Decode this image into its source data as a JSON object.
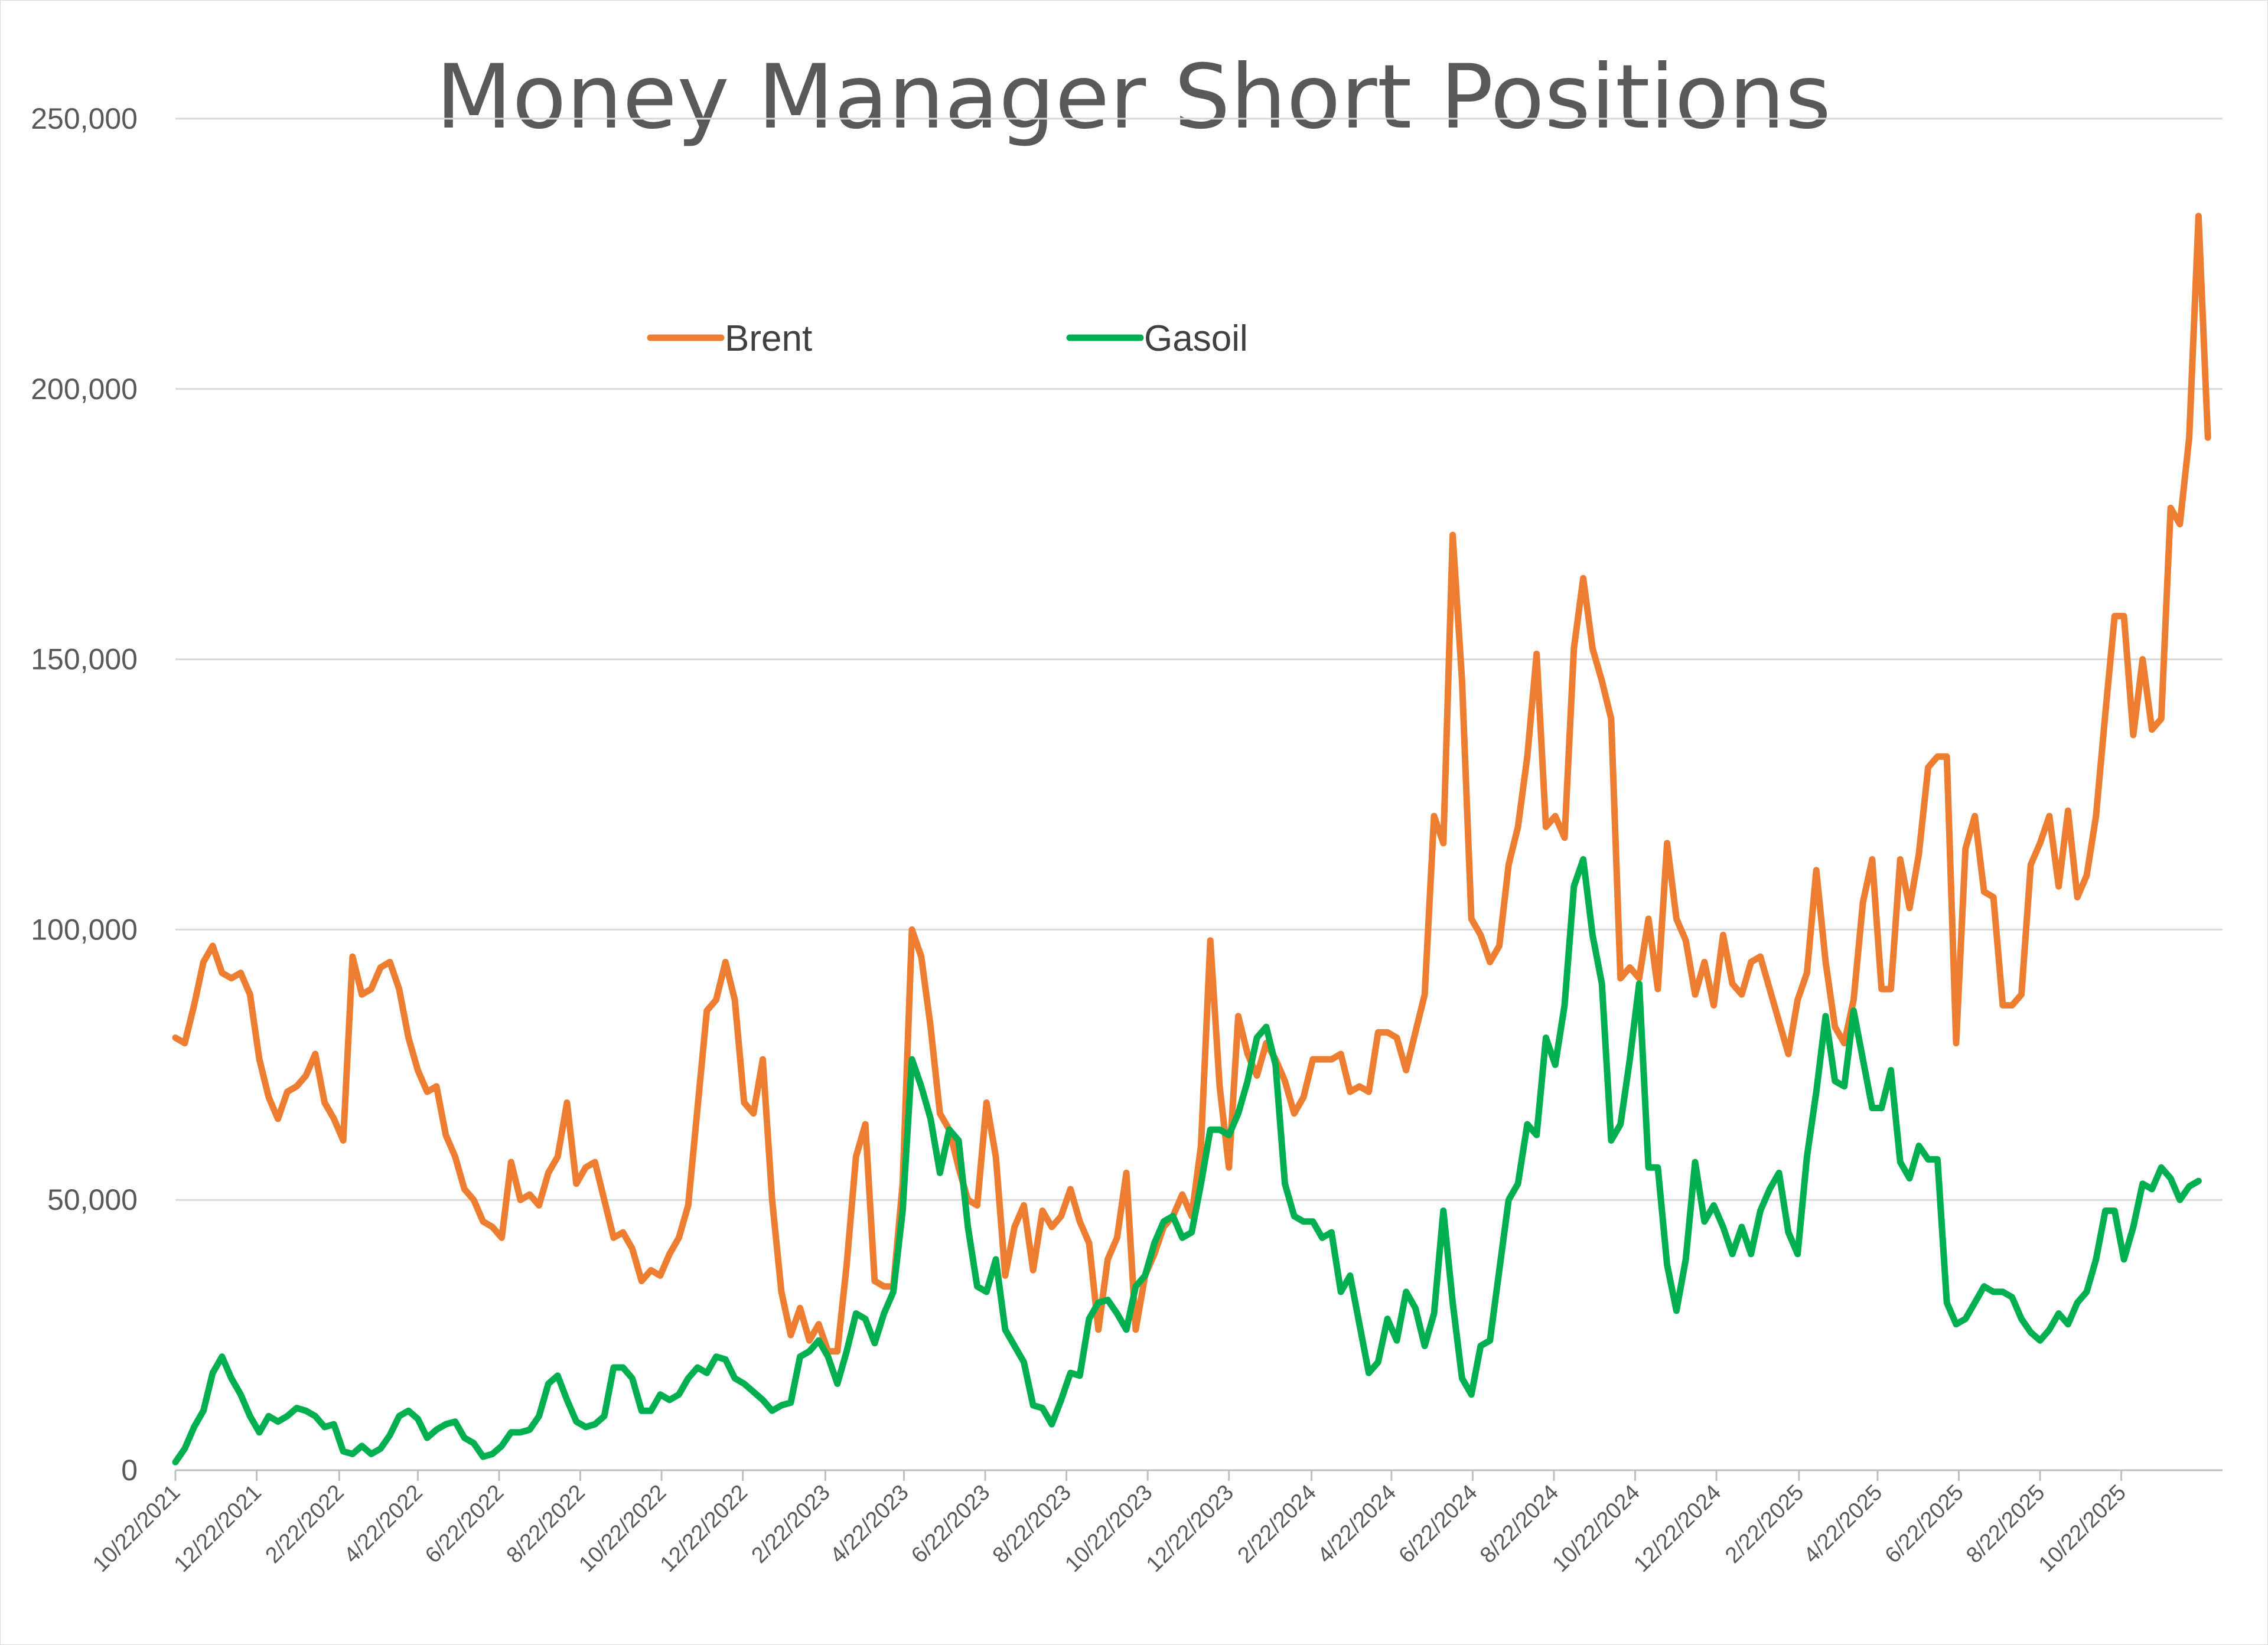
{
  "chart_data": {
    "type": "line",
    "title": "Money Manager Short Positions",
    "xlabel": "",
    "ylabel": "",
    "ylim": [
      0,
      250000
    ],
    "y_ticks": [
      0,
      50000,
      100000,
      150000,
      200000,
      250000
    ],
    "y_tick_labels": [
      "0",
      "50,000",
      "100,000",
      "150,000",
      "200,000",
      "250,000"
    ],
    "x_tick_labels": [
      "10/22/2021",
      "12/22/2021",
      "2/22/2022",
      "4/22/2022",
      "6/22/2022",
      "8/22/2022",
      "10/22/2022",
      "12/22/2022",
      "2/22/2023",
      "4/22/2023",
      "6/22/2023",
      "8/22/2023",
      "10/22/2023",
      "12/22/2023",
      "2/22/2024",
      "4/22/2024",
      "6/22/2024",
      "8/22/2024",
      "10/22/2024",
      "12/22/2024",
      "2/22/2025",
      "4/22/2025",
      "6/22/2025",
      "8/22/2025",
      "10/22/2025"
    ],
    "x_range": [
      "10/22/2021",
      "1/6/2026"
    ],
    "frequency": "weekly",
    "grid": "horizontal",
    "legend_position": "top-center",
    "series": [
      {
        "name": "Brent",
        "color": "#ED7D31",
        "values": [
          80000,
          79000,
          86000,
          94000,
          97000,
          92000,
          91000,
          92000,
          88000,
          76000,
          69000,
          65000,
          70000,
          71000,
          73000,
          77000,
          68000,
          65000,
          61000,
          95000,
          88000,
          89000,
          93000,
          94000,
          89000,
          80000,
          74000,
          70000,
          71000,
          62000,
          58000,
          52000,
          50000,
          46000,
          45000,
          43000,
          57000,
          50000,
          51000,
          49000,
          55000,
          58000,
          68000,
          53000,
          56000,
          57000,
          50000,
          43000,
          44000,
          41000,
          35000,
          37000,
          36000,
          40000,
          43000,
          49000,
          67000,
          85000,
          87000,
          94000,
          87000,
          68000,
          66000,
          76000,
          50000,
          33000,
          25000,
          30000,
          24000,
          27000,
          22000,
          22000,
          38000,
          58000,
          64000,
          35000,
          34000,
          34000,
          53000,
          100000,
          95000,
          82000,
          66000,
          63000,
          56000,
          50000,
          49000,
          68000,
          58000,
          36000,
          45000,
          49000,
          37000,
          48000,
          45000,
          47000,
          52000,
          46000,
          42000,
          26000,
          39000,
          43000,
          55000,
          26000,
          36000,
          40000,
          45000,
          47000,
          51000,
          47000,
          60000,
          98000,
          71000,
          56000,
          84000,
          77000,
          73000,
          79000,
          76000,
          72000,
          66000,
          69000,
          76000,
          76000,
          76000,
          77000,
          70000,
          71000,
          70000,
          81000,
          81000,
          80000,
          74000,
          81000,
          88000,
          121000,
          116000,
          173000,
          146000,
          102000,
          99000,
          94000,
          97000,
          112000,
          119000,
          132000,
          151000,
          119000,
          121000,
          117000,
          152000,
          165000,
          152000,
          146000,
          139000,
          91000,
          93000,
          91000,
          102000,
          89000,
          116000,
          102000,
          98000,
          88000,
          94000,
          86000,
          99000,
          90000,
          88000,
          94000,
          95000,
          89000,
          83000,
          77000,
          87000,
          92000,
          111000,
          94000,
          82000,
          79000,
          87000,
          105000,
          113000,
          89000,
          89000,
          113000,
          104000,
          114000,
          130000,
          132000,
          132000,
          79000,
          115000,
          121000,
          107000,
          106000,
          86000,
          86000,
          88000,
          112000,
          116000,
          121000,
          108000,
          122000,
          106000,
          110000,
          121000,
          140000,
          158000,
          158000,
          136000,
          150000,
          137000,
          139000,
          178000,
          175000,
          191000,
          232000,
          191000
        ]
      },
      {
        "name": "Gasoil",
        "color": "#00B050",
        "values": [
          1500,
          4000,
          8000,
          11000,
          18000,
          21000,
          17000,
          14000,
          10000,
          7000,
          10000,
          9000,
          10000,
          11500,
          11000,
          10000,
          8000,
          8500,
          3500,
          3000,
          4500,
          3000,
          4000,
          6500,
          10000,
          11000,
          9500,
          6000,
          7500,
          8500,
          9000,
          6000,
          5000,
          2500,
          3000,
          4500,
          7000,
          7000,
          7500,
          10000,
          16000,
          17500,
          13000,
          9000,
          8000,
          8500,
          10000,
          19000,
          19000,
          17000,
          11000,
          11000,
          14000,
          13000,
          14000,
          17000,
          19000,
          18000,
          21000,
          20500,
          17000,
          16000,
          14500,
          13000,
          11000,
          12000,
          12500,
          21000,
          22000,
          24000,
          21000,
          16000,
          22000,
          29000,
          28000,
          23500,
          29000,
          33000,
          48000,
          76000,
          71000,
          65000,
          55000,
          63000,
          61000,
          45000,
          34000,
          33000,
          39000,
          26000,
          23000,
          20000,
          12000,
          11500,
          8500,
          13000,
          18000,
          17500,
          28000,
          31000,
          31500,
          29000,
          26000,
          34000,
          36000,
          42000,
          46000,
          47000,
          43000,
          44000,
          53000,
          63000,
          63000,
          62000,
          66000,
          72000,
          80000,
          82000,
          75000,
          53000,
          47000,
          46000,
          46000,
          43000,
          44000,
          33000,
          36000,
          27000,
          18000,
          20000,
          28000,
          24000,
          33000,
          30000,
          23000,
          29000,
          48000,
          31000,
          17000,
          14000,
          23000,
          24000,
          37000,
          50000,
          53000,
          64000,
          62000,
          80000,
          75000,
          86000,
          108000,
          113000,
          99000,
          90000,
          61000,
          64000,
          76000,
          90000,
          56000,
          56000,
          38000,
          29500,
          39000,
          57000,
          46000,
          49000,
          45000,
          40000,
          45000,
          40000,
          48000,
          52000,
          55000,
          44000,
          40000,
          58000,
          70000,
          84000,
          72000,
          71000,
          85000,
          76000,
          67000,
          67000,
          74000,
          57000,
          54000,
          60000,
          57500,
          57500,
          31000,
          27000,
          28000,
          31000,
          34000,
          33000,
          33000,
          32000,
          28000,
          25500,
          24000,
          26000,
          29000,
          27000,
          31000,
          33000,
          39000,
          48000,
          48000,
          39000,
          45000,
          53000,
          52000,
          56000,
          54000,
          50000,
          52500,
          53500
        ]
      }
    ]
  }
}
